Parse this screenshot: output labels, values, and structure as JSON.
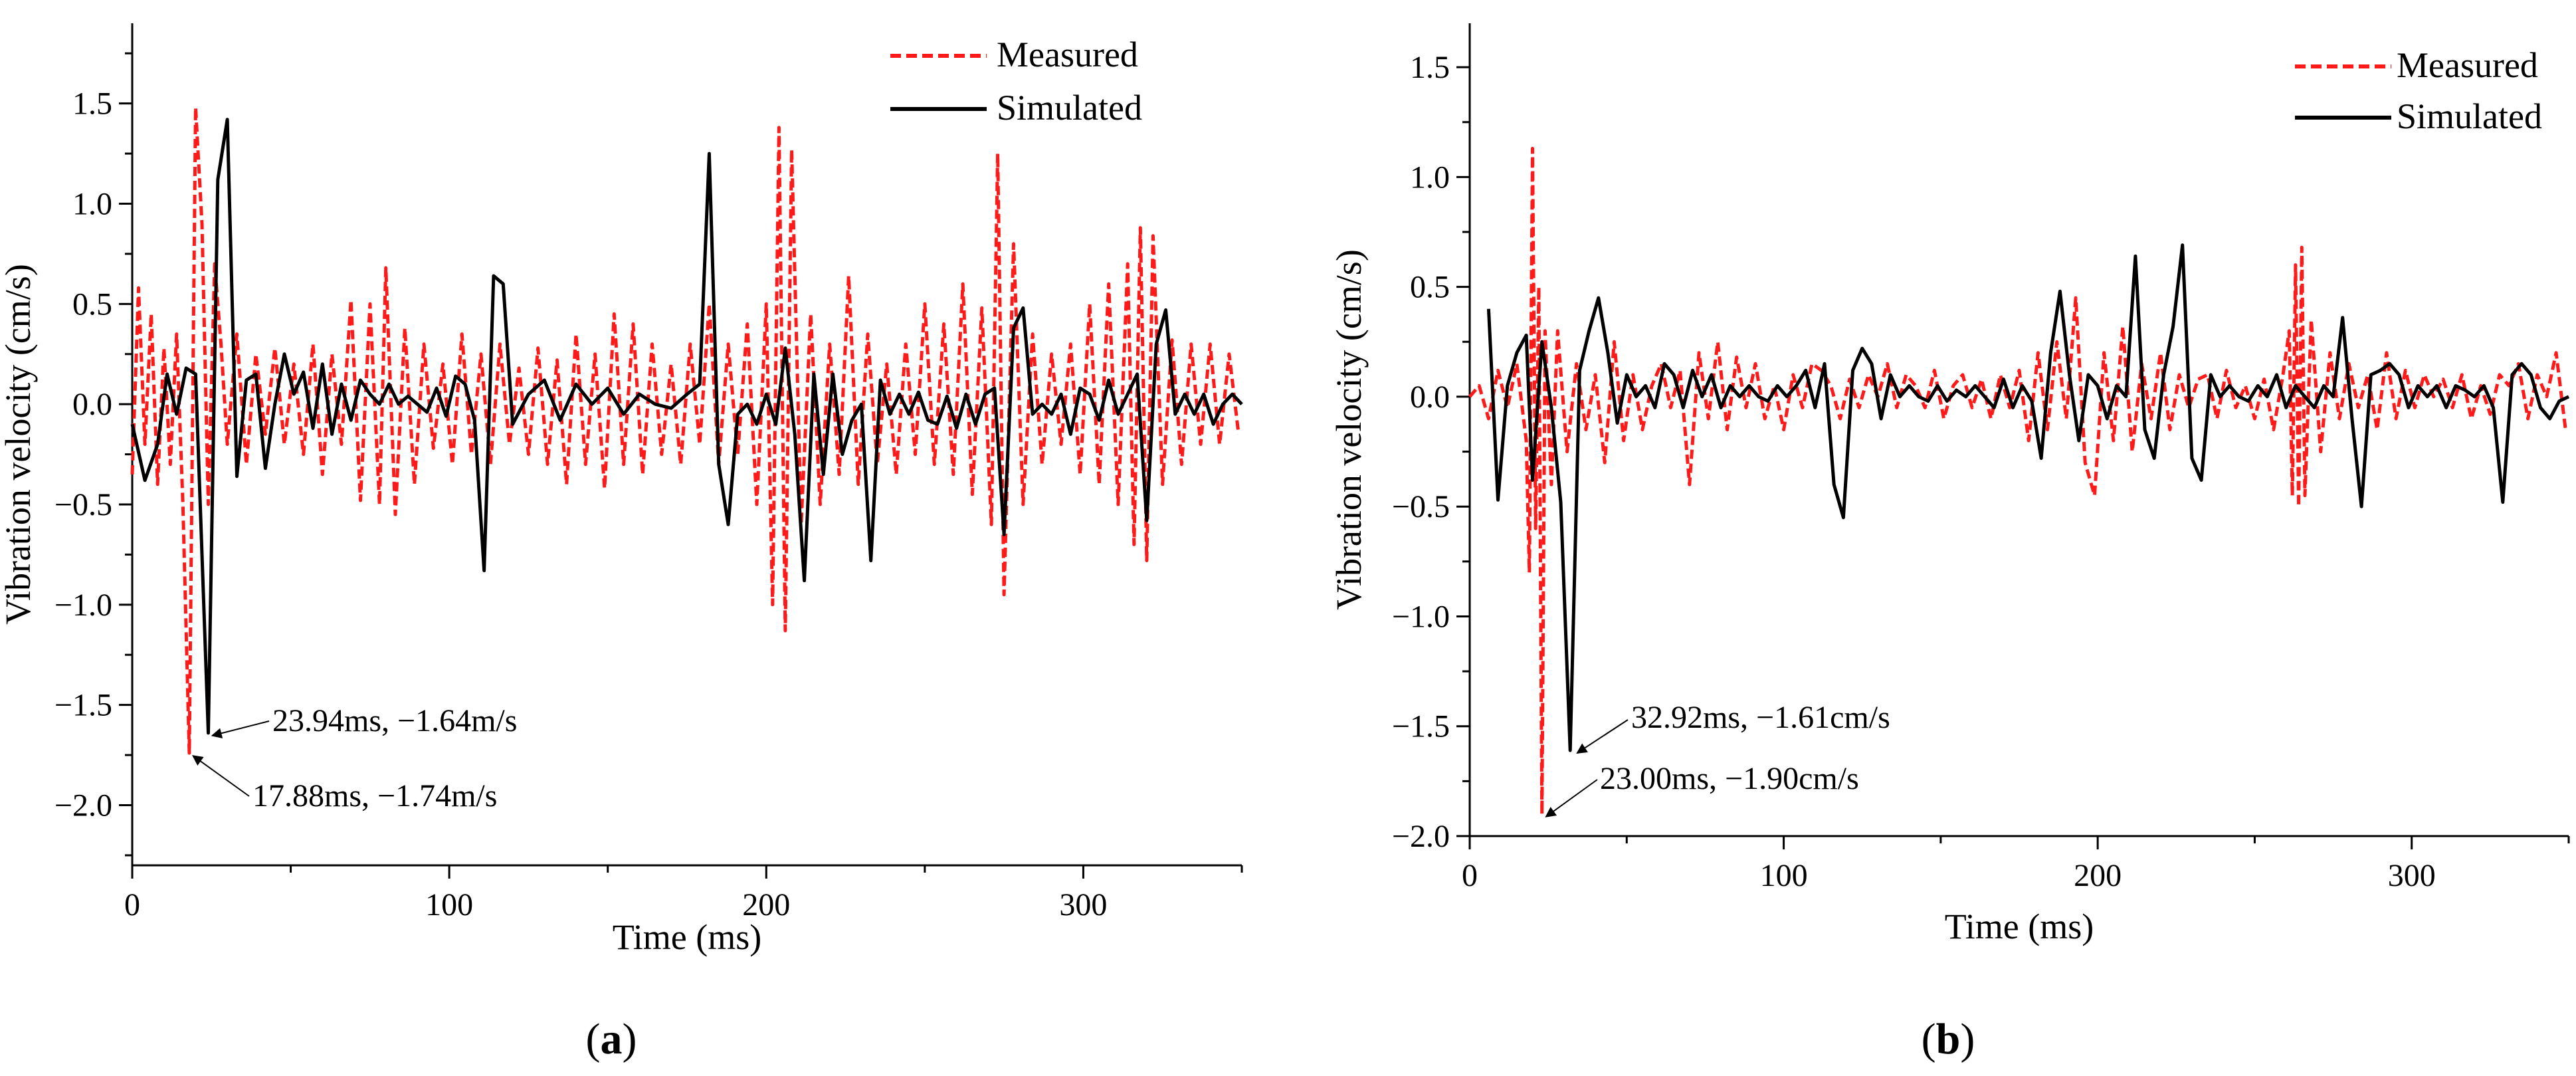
{
  "chart_data": [
    {
      "type": "line",
      "panel_label": [
        "(",
        "a",
        ")"
      ],
      "xlabel": "Time (ms)",
      "ylabel": "Vibration velocity (cm/s)",
      "xlim": [
        0,
        350
      ],
      "ylim": [
        -2.3,
        1.9
      ],
      "xticks": [
        0,
        100,
        200,
        300
      ],
      "yticks": [
        -2.0,
        -1.5,
        -1.0,
        -0.5,
        0.0,
        0.5,
        1.0,
        1.5
      ],
      "x_minor_step": 50,
      "y_minor_step": 0.25,
      "grid": false,
      "legend_position": "top-right",
      "series": [
        {
          "name": "Measured",
          "style": "dashed",
          "color": "#ff1a1a",
          "x": [
            0,
            2,
            4,
            6,
            8,
            10,
            12,
            14,
            16,
            18,
            20,
            22,
            24,
            26,
            28,
            30,
            33,
            36,
            39,
            42,
            45,
            48,
            51,
            54,
            57,
            60,
            63,
            66,
            69,
            72,
            75,
            78,
            80,
            83,
            86,
            89,
            92,
            95,
            98,
            101,
            104,
            107,
            110,
            113,
            116,
            119,
            122,
            125,
            128,
            131,
            134,
            137,
            140,
            143,
            146,
            149,
            152,
            155,
            158,
            161,
            164,
            167,
            170,
            173,
            176,
            179,
            182,
            185,
            188,
            191,
            194,
            197,
            200,
            202,
            204,
            206,
            208,
            211,
            214,
            217,
            220,
            223,
            226,
            229,
            232,
            235,
            238,
            241,
            244,
            247,
            250,
            253,
            256,
            259,
            262,
            265,
            268,
            271,
            273,
            275,
            278,
            281,
            284,
            287,
            290,
            293,
            296,
            299,
            302,
            305,
            308,
            311,
            314,
            316,
            318,
            320,
            322,
            325,
            328,
            331,
            334,
            337,
            340,
            343,
            346,
            349
          ],
          "y": [
            -0.35,
            0.58,
            -0.2,
            0.45,
            -0.4,
            0.28,
            -0.3,
            0.35,
            -0.5,
            -1.74,
            1.48,
            0.9,
            -0.5,
            0.7,
            0.3,
            -0.2,
            0.35,
            -0.3,
            0.25,
            -0.15,
            0.28,
            -0.2,
            0.2,
            -0.25,
            0.3,
            -0.35,
            0.25,
            -0.2,
            0.52,
            -0.48,
            0.5,
            -0.5,
            0.68,
            -0.55,
            0.38,
            -0.4,
            0.3,
            -0.22,
            0.2,
            -0.3,
            0.35,
            -0.25,
            0.25,
            -0.3,
            0.3,
            -0.2,
            0.18,
            -0.25,
            0.28,
            -0.3,
            0.22,
            -0.4,
            0.35,
            -0.3,
            0.25,
            -0.42,
            0.45,
            -0.3,
            0.4,
            -0.35,
            0.3,
            -0.25,
            0.2,
            -0.3,
            0.3,
            -0.2,
            0.5,
            -0.3,
            0.3,
            -0.25,
            0.4,
            -0.5,
            0.5,
            -1.0,
            1.38,
            -1.13,
            1.27,
            -0.6,
            0.45,
            -0.5,
            0.3,
            -0.35,
            0.64,
            -0.4,
            0.35,
            -0.3,
            0.2,
            -0.35,
            0.3,
            -0.25,
            0.5,
            -0.3,
            0.4,
            -0.35,
            0.6,
            -0.45,
            0.48,
            -0.6,
            1.25,
            -0.95,
            0.8,
            -0.5,
            0.35,
            -0.3,
            0.25,
            -0.2,
            0.3,
            -0.35,
            0.5,
            -0.4,
            0.6,
            -0.5,
            0.7,
            -0.7,
            0.88,
            -0.78,
            0.84,
            -0.4,
            0.32,
            -0.3,
            0.3,
            -0.2,
            0.3,
            -0.2,
            0.25,
            -0.15
          ]
        },
        {
          "name": "Simulated",
          "style": "solid",
          "color": "#000000",
          "x": [
            0,
            4,
            8,
            11,
            14,
            17,
            20,
            24,
            27,
            30,
            33,
            36,
            39,
            42,
            45,
            48,
            51,
            54,
            57,
            60,
            63,
            66,
            69,
            72,
            75,
            78,
            81,
            84,
            87,
            90,
            93,
            96,
            99,
            102,
            105,
            108,
            111,
            114,
            117,
            120,
            125,
            130,
            135,
            140,
            145,
            150,
            155,
            160,
            165,
            170,
            175,
            179,
            182,
            185,
            188,
            191,
            194,
            197,
            200,
            203,
            206,
            209,
            212,
            215,
            218,
            221,
            224,
            227,
            230,
            233,
            236,
            239,
            242,
            245,
            248,
            251,
            254,
            257,
            260,
            263,
            266,
            269,
            272,
            275,
            278,
            281,
            284,
            287,
            290,
            293,
            296,
            299,
            302,
            305,
            308,
            311,
            314,
            317,
            320,
            323,
            326,
            329,
            332,
            335,
            338,
            341,
            344,
            347,
            350
          ],
          "y": [
            -0.1,
            -0.38,
            -0.2,
            0.15,
            -0.05,
            0.18,
            0.15,
            -1.64,
            1.12,
            1.42,
            -0.36,
            0.12,
            0.15,
            -0.32,
            0.0,
            0.25,
            0.05,
            0.16,
            -0.12,
            0.2,
            -0.15,
            0.1,
            -0.08,
            0.12,
            0.05,
            0.0,
            0.1,
            0.0,
            0.04,
            0.0,
            -0.04,
            0.08,
            -0.06,
            0.14,
            0.1,
            -0.08,
            -0.83,
            0.64,
            0.6,
            -0.1,
            0.05,
            0.12,
            -0.08,
            0.1,
            0.0,
            0.08,
            -0.05,
            0.05,
            0.0,
            -0.02,
            0.05,
            0.1,
            1.25,
            -0.3,
            -0.6,
            -0.05,
            0.0,
            -0.1,
            0.05,
            -0.1,
            0.28,
            -0.15,
            -0.88,
            0.15,
            -0.35,
            0.15,
            -0.25,
            -0.08,
            0.0,
            -0.78,
            0.12,
            -0.05,
            0.05,
            -0.05,
            0.06,
            -0.08,
            -0.1,
            0.04,
            -0.12,
            0.05,
            -0.1,
            0.05,
            0.08,
            -0.65,
            0.38,
            0.48,
            -0.05,
            0.0,
            -0.05,
            0.05,
            -0.15,
            0.08,
            0.05,
            -0.08,
            0.12,
            -0.05,
            0.05,
            0.15,
            -0.58,
            0.3,
            0.47,
            -0.05,
            0.05,
            -0.05,
            0.05,
            -0.1,
            0.0,
            0.05,
            0.0
          ]
        }
      ],
      "annotations": [
        {
          "text": "23.94ms, −1.64m/s",
          "point": [
            23.94,
            -1.64
          ]
        },
        {
          "text": "17.88ms, −1.74m/s",
          "point": [
            17.88,
            -1.74
          ]
        }
      ]
    },
    {
      "type": "line",
      "panel_label": [
        "(",
        "b",
        ")"
      ],
      "xlabel": "Time (ms)",
      "ylabel": "Vibration velocity (cm/s)",
      "xlim": [
        0,
        350
      ],
      "ylim": [
        -2.0,
        1.7
      ],
      "xticks": [
        0,
        100,
        200,
        300
      ],
      "yticks": [
        -2.0,
        -1.5,
        -1.0,
        -0.5,
        0.0,
        0.5,
        1.0,
        1.5
      ],
      "x_minor_step": 50,
      "y_minor_step": 0.25,
      "grid": false,
      "legend_position": "top-right",
      "series": [
        {
          "name": "Measured",
          "style": "dashed",
          "color": "#ff1a1a",
          "x": [
            0,
            3,
            6,
            9,
            12,
            15,
            18,
            19,
            20,
            21,
            22,
            23,
            24,
            26,
            28,
            31,
            34,
            37,
            40,
            43,
            46,
            49,
            52,
            55,
            58,
            61,
            64,
            67,
            70,
            73,
            76,
            79,
            82,
            85,
            88,
            91,
            94,
            97,
            100,
            103,
            106,
            109,
            112,
            115,
            118,
            121,
            124,
            127,
            130,
            133,
            136,
            139,
            142,
            145,
            148,
            151,
            154,
            157,
            160,
            163,
            166,
            169,
            172,
            175,
            178,
            181,
            184,
            187,
            190,
            193,
            196,
            199,
            202,
            205,
            208,
            211,
            214,
            217,
            220,
            223,
            226,
            229,
            232,
            235,
            238,
            241,
            244,
            247,
            250,
            253,
            256,
            259,
            261,
            262,
            263,
            264,
            265,
            266,
            268,
            271,
            274,
            277,
            280,
            283,
            286,
            289,
            292,
            295,
            298,
            301,
            304,
            307,
            310,
            313,
            316,
            319,
            322,
            325,
            328,
            331,
            334,
            337,
            340,
            343,
            346,
            349
          ],
          "y": [
            0.0,
            0.05,
            -0.1,
            0.12,
            -0.05,
            0.15,
            -0.2,
            -0.8,
            1.13,
            -0.6,
            0.5,
            -1.9,
            0.3,
            -0.4,
            0.3,
            -0.25,
            0.15,
            -0.15,
            0.1,
            -0.3,
            0.25,
            -0.2,
            0.1,
            -0.15,
            0.05,
            0.15,
            -0.05,
            0.12,
            -0.4,
            0.2,
            -0.1,
            0.25,
            -0.15,
            0.18,
            -0.05,
            0.15,
            -0.1,
            0.05,
            -0.15,
            0.1,
            -0.05,
            0.15,
            0.12,
            0.05,
            -0.1,
            0.08,
            -0.05,
            0.1,
            0.0,
            0.15,
            -0.05,
            0.1,
            0.05,
            -0.05,
            0.12,
            -0.1,
            0.05,
            0.1,
            -0.05,
            0.08,
            -0.1,
            0.1,
            -0.05,
            0.12,
            -0.2,
            0.2,
            -0.15,
            0.25,
            -0.1,
            0.45,
            -0.3,
            -0.45,
            0.2,
            -0.2,
            0.32,
            -0.25,
            0.15,
            -0.1,
            0.2,
            -0.15,
            0.1,
            -0.05,
            0.08,
            0.1,
            -0.1,
            0.12,
            -0.05,
            0.05,
            -0.1,
            0.08,
            -0.15,
            0.1,
            0.3,
            -0.45,
            0.6,
            -0.5,
            0.68,
            -0.45,
            0.35,
            -0.25,
            0.2,
            -0.1,
            0.15,
            -0.05,
            0.1,
            -0.15,
            0.2,
            -0.1,
            0.12,
            -0.05,
            0.1,
            0.0,
            0.08,
            -0.05,
            0.1,
            -0.1,
            0.05,
            -0.08,
            0.1,
            0.05,
            0.15,
            -0.1,
            0.1,
            0.0,
            0.2,
            -0.15
          ]
        },
        {
          "name": "Simulated",
          "style": "solid",
          "color": "#000000",
          "x": [
            6,
            9,
            12,
            15,
            18,
            20,
            23,
            26,
            29,
            32,
            35,
            38,
            41,
            44,
            47,
            50,
            53,
            56,
            59,
            62,
            65,
            68,
            71,
            74,
            77,
            80,
            83,
            86,
            89,
            92,
            95,
            98,
            101,
            104,
            107,
            110,
            113,
            116,
            119,
            122,
            125,
            128,
            131,
            134,
            137,
            140,
            143,
            146,
            149,
            152,
            155,
            158,
            161,
            164,
            167,
            170,
            173,
            176,
            179,
            182,
            185,
            188,
            191,
            194,
            197,
            200,
            203,
            206,
            209,
            212,
            215,
            218,
            221,
            224,
            227,
            230,
            233,
            236,
            239,
            242,
            245,
            248,
            251,
            254,
            257,
            260,
            263,
            266,
            269,
            272,
            275,
            278,
            281,
            284,
            287,
            290,
            293,
            296,
            299,
            302,
            305,
            308,
            311,
            314,
            317,
            320,
            323,
            326,
            329,
            332,
            335,
            338,
            341,
            344,
            347,
            350
          ],
          "y": [
            0.4,
            -0.47,
            0.05,
            0.2,
            0.28,
            -0.38,
            0.25,
            -0.05,
            -0.48,
            -1.61,
            0.12,
            0.3,
            0.45,
            0.2,
            -0.12,
            0.1,
            0.0,
            0.05,
            -0.05,
            0.15,
            0.1,
            -0.05,
            0.12,
            0.0,
            0.1,
            -0.05,
            0.05,
            0.0,
            0.05,
            0.0,
            -0.02,
            0.05,
            0.0,
            0.05,
            0.12,
            -0.05,
            0.15,
            -0.4,
            -0.55,
            0.12,
            0.22,
            0.15,
            -0.1,
            0.1,
            0.0,
            0.05,
            0.0,
            -0.02,
            0.05,
            -0.02,
            0.03,
            0.0,
            0.05,
            0.0,
            -0.05,
            0.08,
            -0.05,
            0.05,
            -0.02,
            -0.28,
            0.2,
            0.48,
            0.1,
            -0.2,
            0.1,
            0.05,
            -0.1,
            0.05,
            0.0,
            0.64,
            -0.15,
            -0.28,
            0.1,
            0.32,
            0.69,
            -0.28,
            -0.38,
            0.1,
            0.0,
            0.05,
            0.0,
            -0.02,
            0.05,
            0.0,
            0.1,
            -0.05,
            0.05,
            0.0,
            -0.05,
            0.05,
            0.0,
            0.36,
            -0.1,
            -0.5,
            0.1,
            0.12,
            0.15,
            0.1,
            -0.05,
            0.05,
            0.0,
            0.05,
            -0.05,
            0.05,
            0.03,
            0.0,
            0.05,
            -0.05,
            -0.48,
            0.1,
            0.15,
            0.1,
            -0.05,
            -0.1,
            -0.02,
            0.0
          ]
        }
      ],
      "annotations": [
        {
          "text": "32.92ms, −1.61cm/s",
          "point": [
            32.92,
            -1.61
          ]
        },
        {
          "text": "23.00ms, −1.90cm/s",
          "point": [
            23.0,
            -1.9
          ]
        }
      ]
    }
  ]
}
